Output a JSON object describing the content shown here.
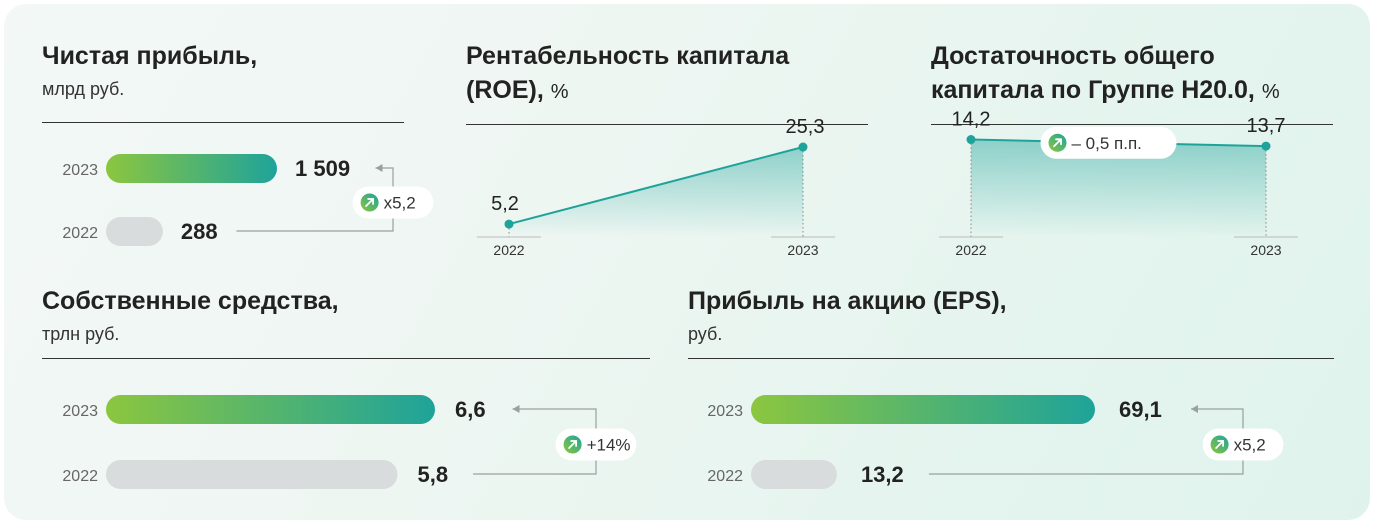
{
  "colors": {
    "bar_current_start": "#8cc63f",
    "bar_current_end": "#1ea39a",
    "bar_prev": "#d9dcdc",
    "line": "#1ea39a",
    "connector": "#9aa0a0"
  },
  "chart_data": [
    {
      "type": "bar",
      "title": "Чистая прибыль,",
      "subtitle": "млрд руб.",
      "categories": [
        "2023",
        "2022"
      ],
      "values": [
        1509,
        288
      ],
      "value_labels": [
        "1 509",
        "288"
      ],
      "change_label": "x5,2",
      "change_icon": "arrow-up-right-icon"
    },
    {
      "type": "line",
      "title": "Рентабельность капитала",
      "title_main": "(ROE),",
      "title_unit": "%",
      "x": [
        "2022",
        "2023"
      ],
      "values": [
        5.2,
        25.3
      ],
      "value_labels": [
        "5,2",
        "25,3"
      ]
    },
    {
      "type": "line",
      "title": "Достаточность общего",
      "title_main": "капитала по Группе Н20.0,",
      "title_unit": "%",
      "x": [
        "2022",
        "2023"
      ],
      "values": [
        14.2,
        13.7
      ],
      "value_labels": [
        "14,2",
        "13,7"
      ],
      "change_label": "– 0,5 п.п.",
      "change_icon": "arrow-up-right-icon"
    },
    {
      "type": "bar",
      "title": "Собственные средства,",
      "subtitle": "трлн руб.",
      "categories": [
        "2023",
        "2022"
      ],
      "values": [
        6.6,
        5.8
      ],
      "value_labels": [
        "6,6",
        "5,8"
      ],
      "change_label": "+14%",
      "change_icon": "arrow-up-right-icon"
    },
    {
      "type": "bar",
      "title": "Прибыль на акцию (EPS),",
      "subtitle": "руб.",
      "categories": [
        "2023",
        "2022"
      ],
      "values": [
        69.1,
        13.2
      ],
      "value_labels": [
        "69,1",
        "13,2"
      ],
      "change_label": "x5,2",
      "change_icon": "arrow-up-right-icon"
    }
  ]
}
